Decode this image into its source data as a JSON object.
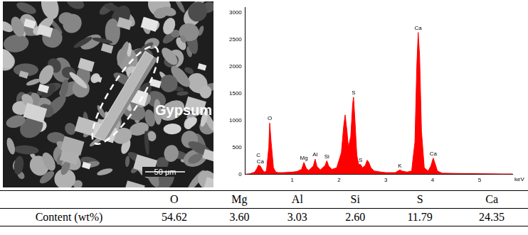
{
  "image": {
    "label": "Gypsum",
    "scale_bar": "50 μm"
  },
  "chart_data": {
    "type": "area",
    "color": "#ff0000",
    "xlabel": "keV",
    "x": [
      0,
      0.1,
      0.2,
      0.25,
      0.28,
      0.32,
      0.36,
      0.4,
      0.45,
      0.5,
      0.52,
      0.55,
      0.6,
      0.65,
      0.7,
      0.8,
      0.9,
      1.0,
      1.1,
      1.2,
      1.25,
      1.3,
      1.35,
      1.45,
      1.49,
      1.53,
      1.6,
      1.7,
      1.74,
      1.78,
      1.85,
      1.95,
      2.05,
      2.1,
      2.13,
      2.17,
      2.2,
      2.25,
      2.29,
      2.31,
      2.34,
      2.38,
      2.42,
      2.46,
      2.5,
      2.56,
      2.6,
      2.63,
      2.68,
      2.75,
      2.9,
      3.0,
      3.1,
      3.2,
      3.3,
      3.34,
      3.45,
      3.55,
      3.62,
      3.66,
      3.69,
      3.72,
      3.76,
      3.82,
      3.9,
      3.96,
      4.01,
      4.05,
      4.1,
      4.2,
      4.5,
      5.0,
      5.5,
      5.7
    ],
    "values": [
      0,
      10,
      40,
      110,
      170,
      150,
      90,
      40,
      60,
      500,
      950,
      600,
      120,
      40,
      30,
      30,
      35,
      40,
      50,
      90,
      220,
      110,
      70,
      150,
      280,
      140,
      80,
      160,
      250,
      150,
      90,
      120,
      400,
      900,
      1100,
      800,
      500,
      700,
      1300,
      1430,
      1000,
      350,
      180,
      180,
      120,
      160,
      260,
      230,
      120,
      60,
      40,
      30,
      30,
      30,
      80,
      60,
      40,
      60,
      600,
      2000,
      2630,
      2200,
      800,
      120,
      60,
      150,
      300,
      200,
      60,
      20,
      15,
      10,
      5,
      5
    ],
    "xlim": [
      0,
      5.7
    ],
    "xticks": [
      1,
      2,
      3,
      4,
      5
    ],
    "ylim": [
      0,
      3100
    ],
    "yticks": [
      0,
      500,
      1000,
      1500,
      2000,
      2500,
      3000
    ],
    "grid": false,
    "annotations": [
      {
        "text": "Ca",
        "x": 0.32
      },
      {
        "text": "C",
        "x": 0.28
      },
      {
        "text": "O",
        "x": 0.52
      },
      {
        "text": "Mg",
        "x": 1.25
      },
      {
        "text": "Al",
        "x": 1.49
      },
      {
        "text": "Si",
        "x": 1.74
      },
      {
        "text": "S",
        "x": 2.31
      },
      {
        "text": "S",
        "x": 2.46
      },
      {
        "text": "K",
        "x": 3.3
      },
      {
        "text": "Ca",
        "x": 3.69
      },
      {
        "text": "Ca",
        "x": 4.01
      }
    ]
  },
  "table": {
    "header": [
      "O",
      "Mg",
      "Al",
      "Si",
      "S",
      "Ca"
    ],
    "rows": [
      [
        "Content (wt%)",
        "54.62",
        "3.60",
        "3.03",
        "2.60",
        "11.79",
        "24.35"
      ]
    ]
  }
}
